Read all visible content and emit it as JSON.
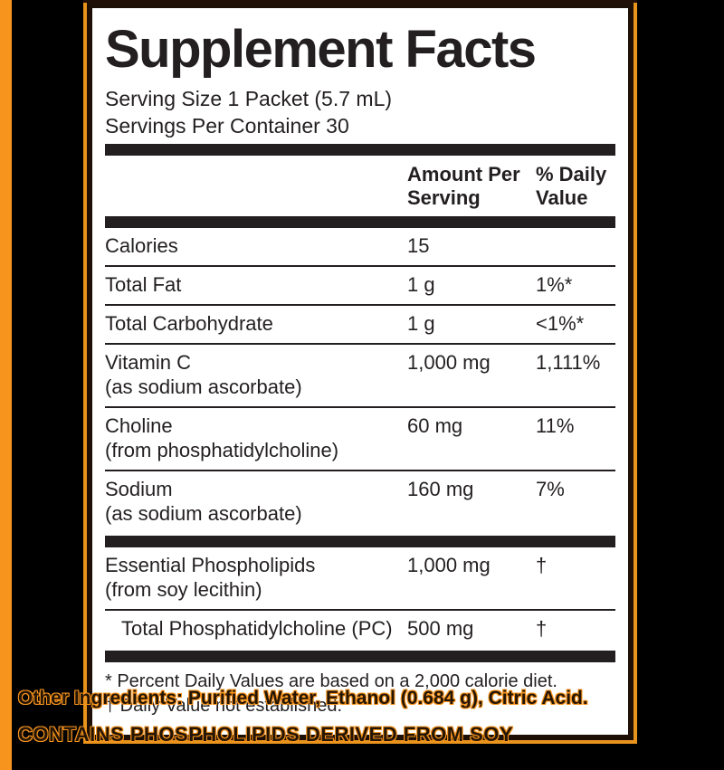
{
  "label": {
    "title": "Supplement Facts",
    "serving_size": "Serving Size 1 Packet (5.7 mL)",
    "servings_per_container": "Servings Per Container 30",
    "columns": {
      "amount": "Amount Per Serving",
      "daily": "% Daily Value"
    },
    "rows": [
      {
        "name": "Calories",
        "sub": "",
        "amount": "15",
        "dv": ""
      },
      {
        "name": "Total Fat",
        "sub": "",
        "amount": "1 g",
        "dv": "1%*"
      },
      {
        "name": "Total Carbohydrate",
        "sub": "",
        "amount": "1 g",
        "dv": "<1%*"
      },
      {
        "name": "Vitamin C",
        "sub": "(as sodium ascorbate)",
        "amount": "1,000 mg",
        "dv": "1,111%"
      },
      {
        "name": "Choline",
        "sub": "(from phosphatidylcholine)",
        "amount": "60 mg",
        "dv": "11%"
      },
      {
        "name": "Sodium",
        "sub": "(as sodium ascorbate)",
        "amount": "160 mg",
        "dv": "7%"
      }
    ],
    "section2": [
      {
        "name": "Essential Phospholipids",
        "sub": "(from soy lecithin)",
        "amount": "1,000 mg",
        "dv": "†"
      },
      {
        "name": "Total Phosphatidylcholine (PC)",
        "sub": "",
        "amount": "500 mg",
        "dv": "†"
      }
    ],
    "footnotes": {
      "daily_value": "* Percent Daily Values are based on a 2,000 calorie diet.",
      "dagger": "† Daily Value not established."
    }
  },
  "below": {
    "other_ingredients": "Other Ingredients: Purified Water, Ethanol (0.684 g), Citric Acid.",
    "contains": "CONTAINS PHOSPHOLIPIDS DERIVED FROM SOY"
  },
  "colors": {
    "accent_orange": "#F7941D",
    "panel_background": "#FFFFFF",
    "page_background": "#000000",
    "text": "#231F20"
  }
}
